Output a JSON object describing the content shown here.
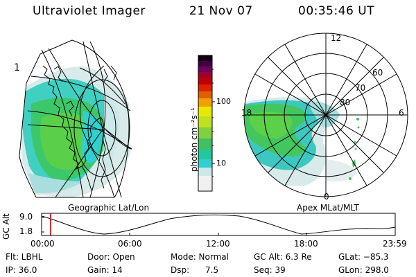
{
  "header": {
    "instrument": "Ultraviolet Imager",
    "date": "21 Nov 07",
    "time": "00:35:46 UT"
  },
  "left_panel": {
    "corner_mark": "1",
    "caption": "Geographic Lat/Lon"
  },
  "colorbar": {
    "unit_label": "photon cm⁻²s⁻¹",
    "tick_100": "100",
    "tick_10": "10",
    "colors": [
      "#f0f0f0",
      "#cce8e8",
      "#30d0d0",
      "#20c8a0",
      "#40c060",
      "#80d040",
      "#c0e020",
      "#e8e800",
      "#f0a000",
      "#e06000",
      "#e02000",
      "#c00000",
      "#a00030",
      "#700060",
      "#400040",
      "#100010"
    ]
  },
  "polar_panel": {
    "caption": "Apex MLat/MLT",
    "mlt_labels": {
      "top": "12",
      "left": "18",
      "right": "6",
      "bottom": "0"
    },
    "lat_labels": {
      "outer": "60",
      "middle": "70",
      "inner": "80"
    }
  },
  "orbit_plot": {
    "ylabel": "GC Alt",
    "ytick_top": "9.0",
    "ytick_bottom": "1.8",
    "xticks": [
      "00:00",
      "06:00",
      "12:00",
      "18:00",
      "23:59"
    ],
    "current_time_fraction": 0.025
  },
  "status": {
    "flt": "Flt: LBHL",
    "ip": "IP: 36.0",
    "door": "Door: Open",
    "gain": "Gain: 14",
    "mode": "Mode: Normal",
    "dsp": "Dsp:      7.5",
    "gc_alt": "GC Alt: 6.3 Re",
    "seq": "Seq: 39",
    "glat": "GLat: −85.3",
    "glon": "GLon: 298.0"
  }
}
